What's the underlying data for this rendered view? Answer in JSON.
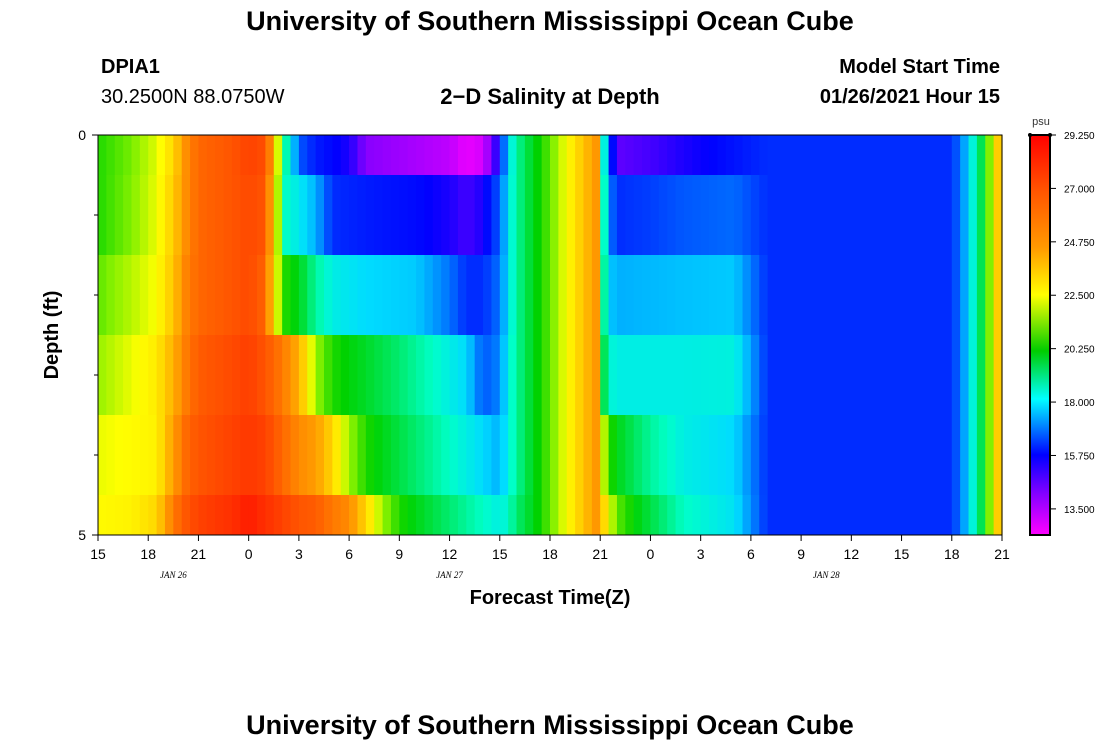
{
  "page": {
    "title_top": "University of Southern Mississippi Ocean Cube",
    "title_bottom": "University of Southern Mississippi Ocean Cube",
    "station_id": "DPIA1",
    "station_coords": "30.2500N 88.0750W",
    "chart_title": "2−D Salinity at Depth",
    "model_start_label": "Model Start Time",
    "model_start_value": "01/26/2021 Hour 15"
  },
  "chart_data": {
    "type": "heatmap",
    "title": "2−D Salinity at Depth",
    "xlabel": "Forecast Time(Z)",
    "ylabel": "Depth (ft)",
    "x_start_hour_index": 0,
    "x_end_hour_index": 54,
    "x_ticks": [
      {
        "h": 0,
        "label": "15"
      },
      {
        "h": 3,
        "label": "18"
      },
      {
        "h": 6,
        "label": "21"
      },
      {
        "h": 9,
        "label": "0"
      },
      {
        "h": 12,
        "label": "3"
      },
      {
        "h": 15,
        "label": "6"
      },
      {
        "h": 18,
        "label": "9"
      },
      {
        "h": 21,
        "label": "12"
      },
      {
        "h": 24,
        "label": "15"
      },
      {
        "h": 27,
        "label": "18"
      },
      {
        "h": 30,
        "label": "21"
      },
      {
        "h": 33,
        "label": "0"
      },
      {
        "h": 36,
        "label": "3"
      },
      {
        "h": 39,
        "label": "6"
      },
      {
        "h": 42,
        "label": "9"
      },
      {
        "h": 45,
        "label": "12"
      },
      {
        "h": 48,
        "label": "15"
      },
      {
        "h": 51,
        "label": "18"
      },
      {
        "h": 54,
        "label": "21"
      }
    ],
    "date_labels": [
      {
        "h": 4.5,
        "label": "JAN  26"
      },
      {
        "h": 21,
        "label": "JAN  27"
      },
      {
        "h": 43.5,
        "label": "JAN  28"
      }
    ],
    "y_range": [
      0,
      5
    ],
    "y_tick_labels": [
      {
        "d": 0,
        "label": "0"
      },
      {
        "d": 5,
        "label": "5"
      }
    ],
    "y_minor_ticks": [
      1,
      2,
      3,
      4
    ],
    "depth_layers": [
      {
        "d0": 0.0,
        "d1": 0.5
      },
      {
        "d0": 0.5,
        "d1": 1.5
      },
      {
        "d0": 1.5,
        "d1": 2.5
      },
      {
        "d0": 2.5,
        "d1": 3.5
      },
      {
        "d0": 3.5,
        "d1": 4.5
      },
      {
        "d0": 4.5,
        "d1": 5.0
      }
    ],
    "colorbar": {
      "unit": "psu",
      "min": 12.4,
      "max": 29.25,
      "tick_values": [
        29.25,
        27.0,
        24.75,
        22.5,
        20.25,
        18.0,
        15.75,
        13.5
      ],
      "tick_labels": [
        "29.250",
        "27.000",
        "24.750",
        "22.500",
        "20.250",
        "18.000",
        "15.750",
        "13.500"
      ]
    },
    "series": [
      {
        "name": "layer-0",
        "keypoints": [
          [
            0,
            20.5
          ],
          [
            2,
            21.2
          ],
          [
            3.5,
            22.2
          ],
          [
            4.5,
            23.5
          ],
          [
            5.3,
            25.5
          ],
          [
            6,
            26.5
          ],
          [
            8,
            27
          ],
          [
            9,
            27.5
          ],
          [
            10,
            27.2
          ],
          [
            10.6,
            24
          ],
          [
            11,
            19
          ],
          [
            11.5,
            17.5
          ],
          [
            12,
            15.5
          ],
          [
            13,
            14.8
          ],
          [
            15,
            14.3
          ],
          [
            16,
            13.5
          ],
          [
            19,
            13.2
          ],
          [
            21,
            13.0
          ],
          [
            22,
            12.6
          ],
          [
            23,
            12.8
          ],
          [
            24,
            14.5
          ],
          [
            24.5,
            17
          ],
          [
            25,
            18.5
          ],
          [
            26,
            20
          ],
          [
            27,
            21
          ],
          [
            28,
            22.5
          ],
          [
            29,
            24
          ],
          [
            30,
            25.5
          ],
          [
            30.3,
            16
          ],
          [
            31,
            13.8
          ],
          [
            33,
            14
          ],
          [
            35,
            14.3
          ],
          [
            38,
            14.7
          ],
          [
            40,
            15
          ],
          [
            42,
            15
          ],
          [
            44,
            15
          ],
          [
            46,
            15
          ],
          [
            48,
            15
          ],
          [
            51,
            15
          ],
          [
            51.6,
            16
          ],
          [
            52.2,
            17.5
          ],
          [
            52.8,
            19.5
          ],
          [
            53.3,
            21.5
          ],
          [
            53.7,
            23.5
          ],
          [
            54,
            25
          ]
        ]
      },
      {
        "name": "layer-1",
        "keypoints": [
          [
            0,
            20.5
          ],
          [
            2,
            21.3
          ],
          [
            3.5,
            22.3
          ],
          [
            4.5,
            23.8
          ],
          [
            5.3,
            25.5
          ],
          [
            6,
            26.5
          ],
          [
            8,
            27
          ],
          [
            9,
            27.3
          ],
          [
            10,
            27
          ],
          [
            10.6,
            23
          ],
          [
            11.2,
            18
          ],
          [
            12,
            17.3
          ],
          [
            13,
            16.5
          ],
          [
            14,
            15
          ],
          [
            16,
            14.8
          ],
          [
            19,
            14.6
          ],
          [
            21,
            14.3
          ],
          [
            22,
            14
          ],
          [
            23,
            14.3
          ],
          [
            24,
            15.5
          ],
          [
            24.5,
            17.2
          ],
          [
            25,
            18.5
          ],
          [
            26,
            20
          ],
          [
            27,
            21
          ],
          [
            28,
            22.5
          ],
          [
            29,
            24
          ],
          [
            30,
            25.5
          ],
          [
            30.3,
            16.5
          ],
          [
            31,
            15
          ],
          [
            33,
            15.2
          ],
          [
            35,
            15.5
          ],
          [
            38,
            15.7
          ],
          [
            40,
            15
          ],
          [
            42,
            15
          ],
          [
            44,
            15
          ],
          [
            46,
            15
          ],
          [
            48,
            15
          ],
          [
            51,
            15
          ],
          [
            51.6,
            16
          ],
          [
            52.2,
            17.5
          ],
          [
            52.8,
            19.5
          ],
          [
            53.3,
            21.5
          ],
          [
            53.7,
            23.5
          ],
          [
            54,
            25
          ]
        ]
      },
      {
        "name": "layer-2",
        "keypoints": [
          [
            0,
            21
          ],
          [
            2,
            21.8
          ],
          [
            3.5,
            22.5
          ],
          [
            4.5,
            24
          ],
          [
            5.3,
            25.8
          ],
          [
            6,
            26.5
          ],
          [
            8,
            27
          ],
          [
            9,
            27.3
          ],
          [
            10,
            26.6
          ],
          [
            10.6,
            22.5
          ],
          [
            11.2,
            20.5
          ],
          [
            12,
            20
          ],
          [
            13,
            18.5
          ],
          [
            14,
            17.5
          ],
          [
            16,
            17
          ],
          [
            19,
            16.8
          ],
          [
            21,
            15.8
          ],
          [
            22,
            15
          ],
          [
            23,
            15
          ],
          [
            24,
            15.8
          ],
          [
            24.5,
            17.2
          ],
          [
            25,
            18.5
          ],
          [
            26,
            20
          ],
          [
            27,
            21
          ],
          [
            28,
            22.5
          ],
          [
            29,
            24
          ],
          [
            30,
            25.5
          ],
          [
            30.3,
            17
          ],
          [
            31,
            16.5
          ],
          [
            33,
            16.6
          ],
          [
            35,
            16.7
          ],
          [
            38,
            16.8
          ],
          [
            40,
            15
          ],
          [
            42,
            15
          ],
          [
            44,
            15
          ],
          [
            46,
            15
          ],
          [
            48,
            15
          ],
          [
            51,
            15
          ],
          [
            51.6,
            16
          ],
          [
            52.2,
            17.5
          ],
          [
            52.8,
            19.5
          ],
          [
            53.3,
            21.5
          ],
          [
            53.7,
            23.5
          ],
          [
            54,
            25
          ]
        ]
      },
      {
        "name": "layer-3",
        "keypoints": [
          [
            0,
            21.5
          ],
          [
            2,
            22.3
          ],
          [
            3.5,
            23
          ],
          [
            4.5,
            24.5
          ],
          [
            5.3,
            26
          ],
          [
            6,
            26.8
          ],
          [
            8,
            27.3
          ],
          [
            9,
            27.6
          ],
          [
            10,
            27
          ],
          [
            11,
            26
          ],
          [
            12,
            24.5
          ],
          [
            13,
            21.5
          ],
          [
            14,
            20.5
          ],
          [
            16,
            19.8
          ],
          [
            18,
            19
          ],
          [
            20,
            18
          ],
          [
            22,
            17
          ],
          [
            23,
            15.5
          ],
          [
            24,
            16
          ],
          [
            24.5,
            17.5
          ],
          [
            25,
            18.5
          ],
          [
            26,
            20
          ],
          [
            27,
            21
          ],
          [
            28,
            22.5
          ],
          [
            29,
            24
          ],
          [
            30,
            25.5
          ],
          [
            30.3,
            18
          ],
          [
            31,
            17.5
          ],
          [
            33,
            17.5
          ],
          [
            35,
            17.5
          ],
          [
            38,
            17.6
          ],
          [
            40,
            15
          ],
          [
            42,
            15
          ],
          [
            44,
            15
          ],
          [
            46,
            15
          ],
          [
            48,
            15
          ],
          [
            51,
            15
          ],
          [
            51.6,
            16
          ],
          [
            52.2,
            17.5
          ],
          [
            52.8,
            19.5
          ],
          [
            53.3,
            21.5
          ],
          [
            53.7,
            23.5
          ],
          [
            54,
            25
          ]
        ]
      },
      {
        "name": "layer-4",
        "keypoints": [
          [
            0,
            22.3
          ],
          [
            2,
            22.6
          ],
          [
            3.5,
            22.8
          ],
          [
            4.5,
            25
          ],
          [
            5.3,
            26.5
          ],
          [
            6,
            27
          ],
          [
            8,
            27.5
          ],
          [
            9,
            27.8
          ],
          [
            10,
            27.5
          ],
          [
            11,
            26.5
          ],
          [
            12,
            25.5
          ],
          [
            13,
            25
          ],
          [
            14,
            23.5
          ],
          [
            15,
            21.5
          ],
          [
            16,
            20.5
          ],
          [
            18,
            19.5
          ],
          [
            20,
            18.5
          ],
          [
            22,
            17.5
          ],
          [
            24,
            16.5
          ],
          [
            24.5,
            17.5
          ],
          [
            25,
            18.5
          ],
          [
            26,
            20
          ],
          [
            27,
            21
          ],
          [
            28,
            22.5
          ],
          [
            29,
            24
          ],
          [
            30,
            25.5
          ],
          [
            30.3,
            21
          ],
          [
            31,
            20
          ],
          [
            33,
            18.5
          ],
          [
            35,
            17.5
          ],
          [
            38,
            17
          ],
          [
            40,
            15
          ],
          [
            42,
            15
          ],
          [
            44,
            15
          ],
          [
            46,
            15
          ],
          [
            48,
            15
          ],
          [
            51,
            15
          ],
          [
            51.6,
            16
          ],
          [
            52.2,
            17.5
          ],
          [
            52.8,
            19.5
          ],
          [
            53.3,
            21.5
          ],
          [
            53.7,
            23.5
          ],
          [
            54,
            25
          ]
        ]
      },
      {
        "name": "layer-5",
        "keypoints": [
          [
            0,
            22.6
          ],
          [
            2,
            22.8
          ],
          [
            3.5,
            23.5
          ],
          [
            4.5,
            26
          ],
          [
            5.3,
            27
          ],
          [
            6,
            27.5
          ],
          [
            8,
            28
          ],
          [
            9,
            28.5
          ],
          [
            10,
            28
          ],
          [
            11,
            27.5
          ],
          [
            12,
            27
          ],
          [
            13,
            26.8
          ],
          [
            14,
            26
          ],
          [
            15,
            25.5
          ],
          [
            16,
            23.5
          ],
          [
            17,
            21.5
          ],
          [
            18,
            20.5
          ],
          [
            20,
            19.5
          ],
          [
            22,
            18.5
          ],
          [
            24,
            17.5
          ],
          [
            24.5,
            18
          ],
          [
            25,
            19
          ],
          [
            26,
            20
          ],
          [
            27,
            21
          ],
          [
            28,
            22.5
          ],
          [
            29,
            24
          ],
          [
            30,
            25.5
          ],
          [
            30.3,
            23
          ],
          [
            31,
            21
          ],
          [
            33,
            19.5
          ],
          [
            35,
            18
          ],
          [
            38,
            17.2
          ],
          [
            40,
            15
          ],
          [
            42,
            15
          ],
          [
            44,
            15
          ],
          [
            46,
            15
          ],
          [
            48,
            15
          ],
          [
            51,
            15
          ],
          [
            51.6,
            16
          ],
          [
            52.2,
            17.5
          ],
          [
            52.8,
            19.5
          ],
          [
            53.3,
            21.5
          ],
          [
            53.7,
            23.5
          ],
          [
            54,
            25
          ]
        ]
      }
    ]
  }
}
